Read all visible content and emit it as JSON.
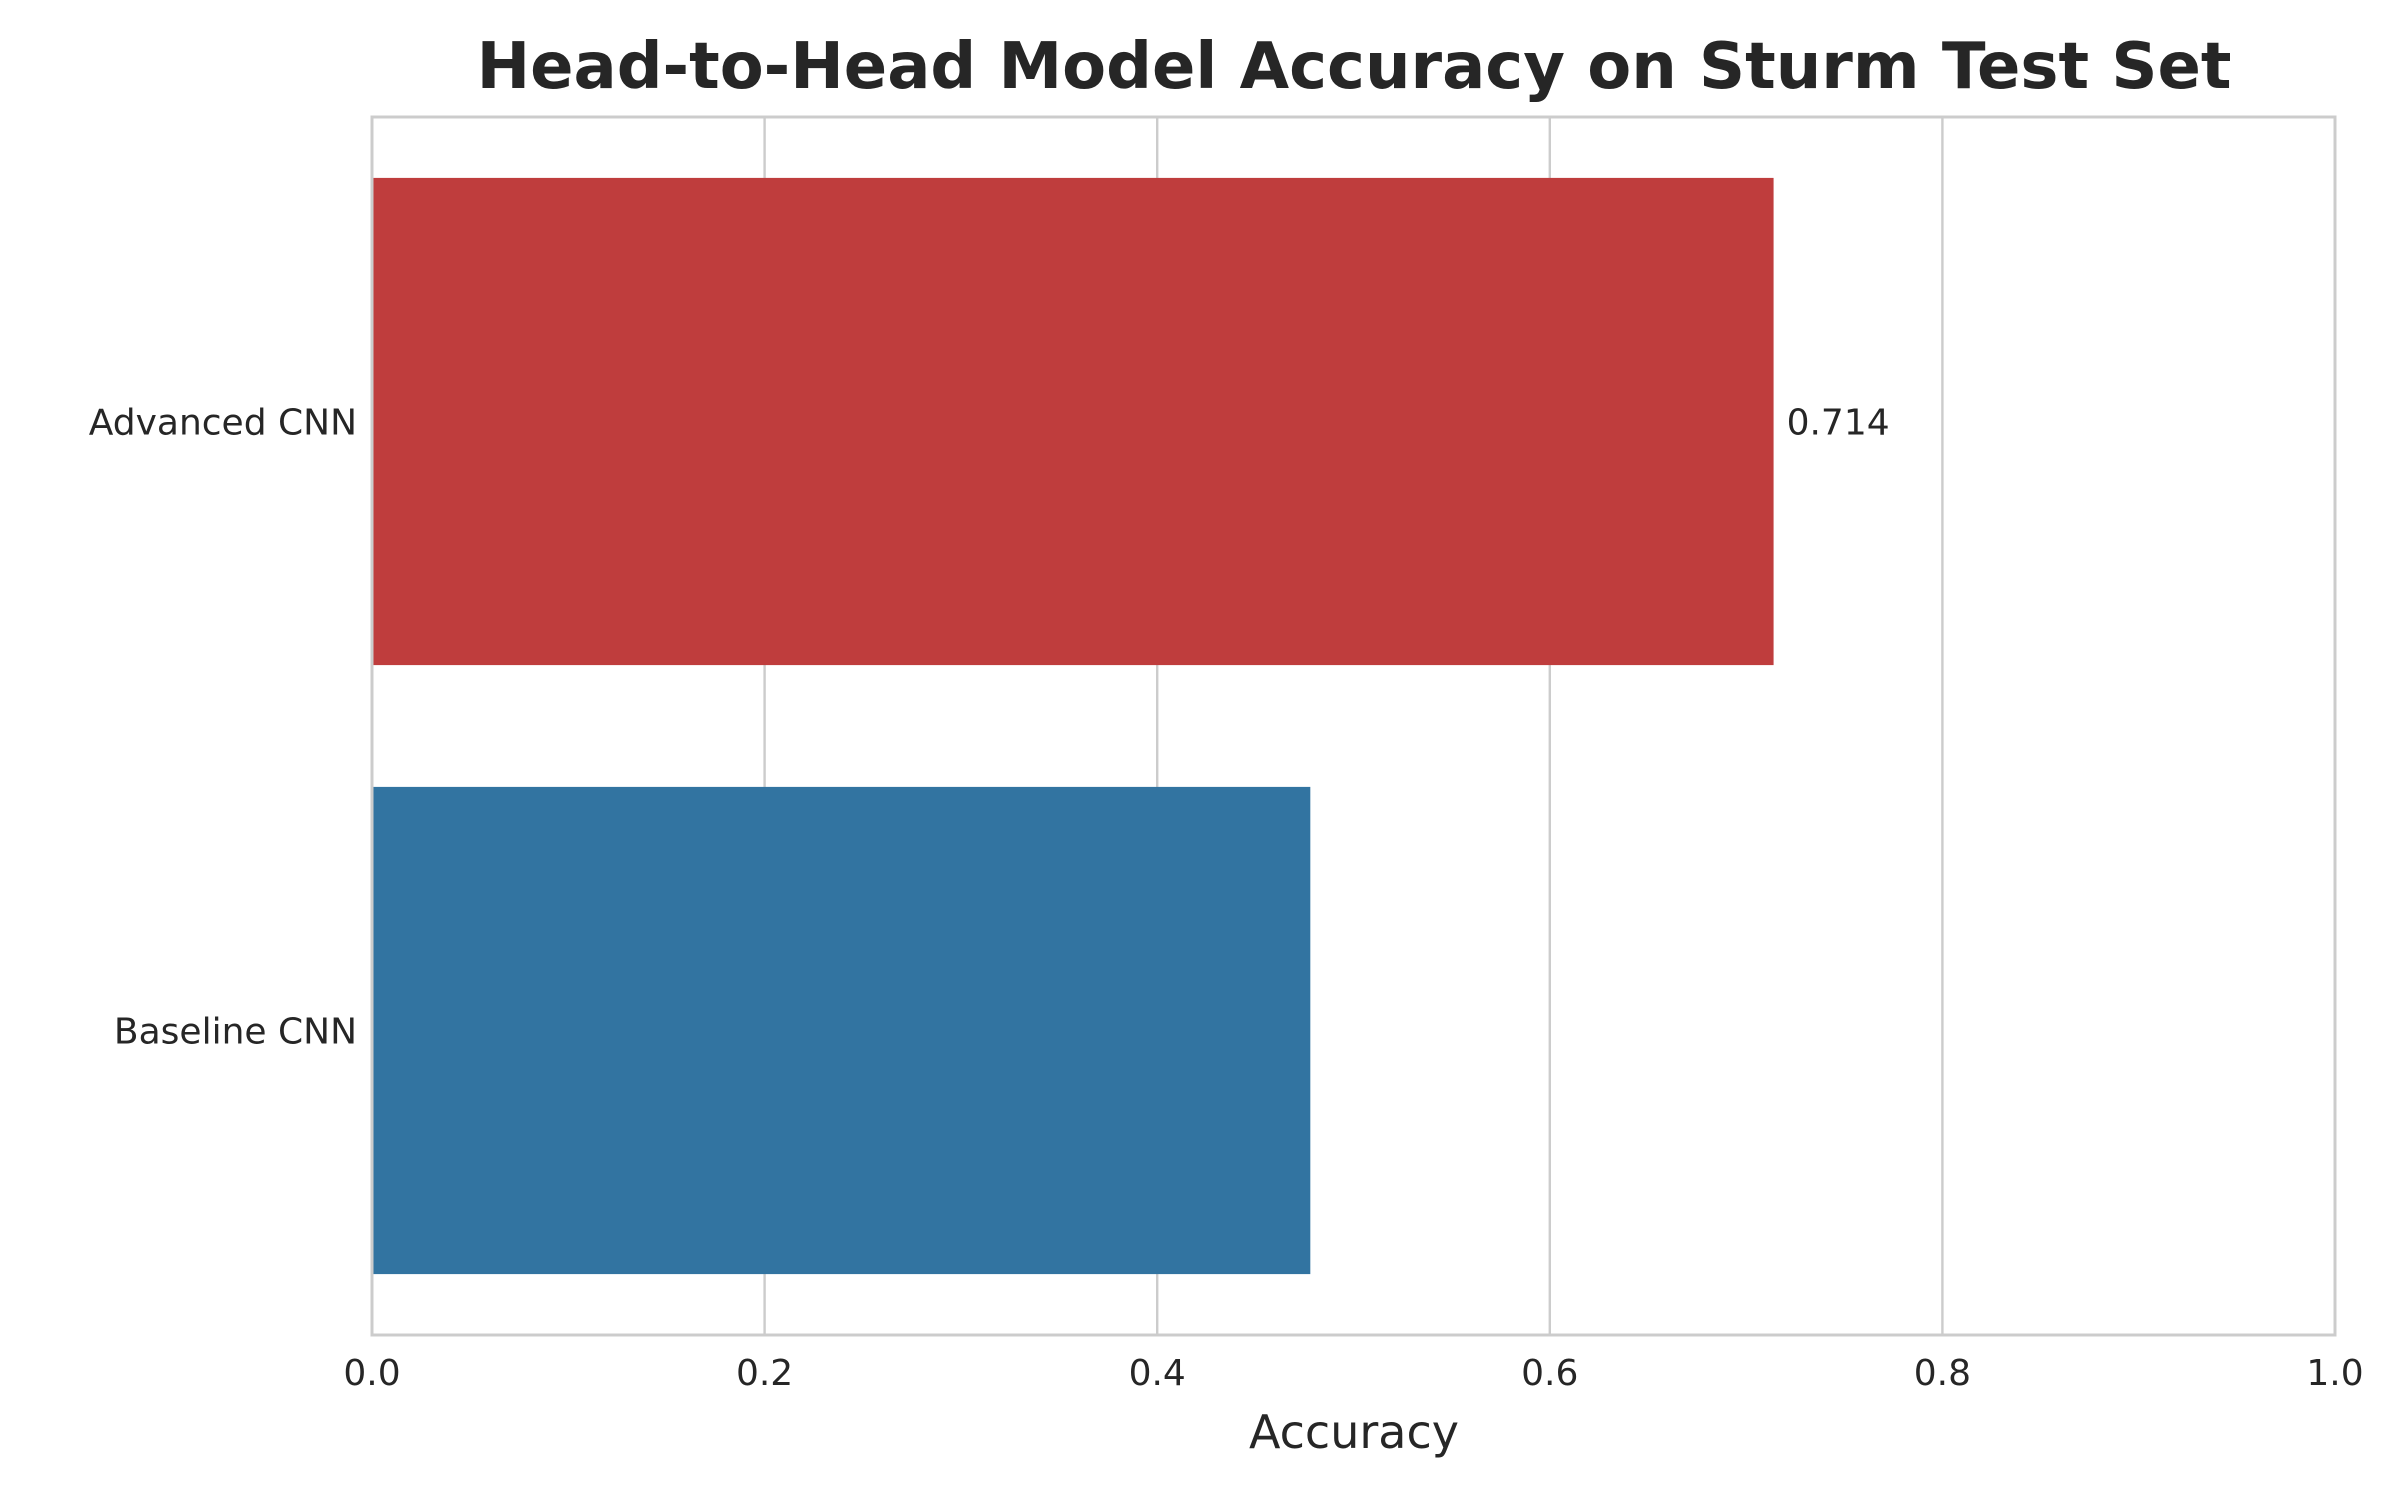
{
  "chart_data": {
    "type": "bar",
    "orientation": "horizontal",
    "title": "Head-to-Head Model Accuracy on Sturm Test Set",
    "xlabel": "Accuracy",
    "ylabel": "",
    "xlim": [
      0.0,
      1.0
    ],
    "xticks": [
      "0.0",
      "0.2",
      "0.4",
      "0.6",
      "0.8",
      "1.0"
    ],
    "grid": true,
    "categories": [
      "Advanced CNN",
      "Baseline CNN"
    ],
    "values": [
      0.714,
      0.478
    ],
    "colors": [
      "#bf3d3d",
      "#3274a1"
    ],
    "data_labels": [
      "0.714",
      ""
    ]
  }
}
